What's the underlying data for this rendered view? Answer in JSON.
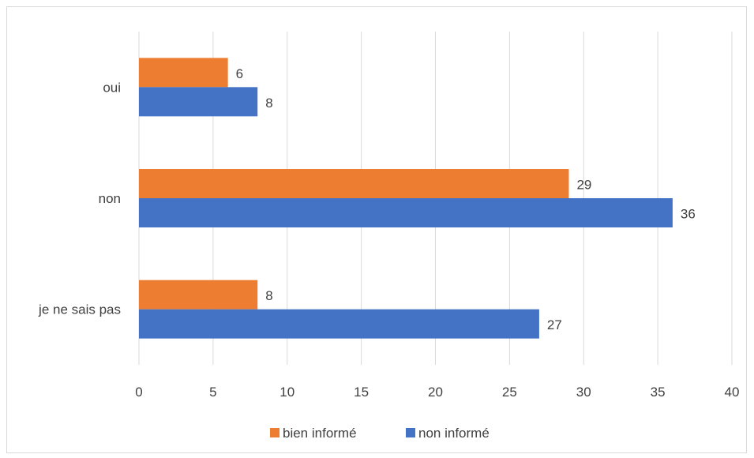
{
  "chart_data": {
    "type": "bar",
    "orientation": "horizontal",
    "categories": [
      "oui",
      "non",
      "je ne sais pas"
    ],
    "series": [
      {
        "name": "bien informé",
        "values": [
          6,
          29,
          8
        ],
        "color": "#ed7d31"
      },
      {
        "name": "non informé",
        "values": [
          8,
          36,
          27
        ],
        "color": "#4472c4"
      }
    ],
    "xlim": [
      0,
      40
    ],
    "xticks": [
      0,
      5,
      10,
      15,
      20,
      25,
      30,
      35,
      40
    ],
    "grid": true,
    "legend": "bottom",
    "title": "",
    "xlabel": "",
    "ylabel": ""
  }
}
